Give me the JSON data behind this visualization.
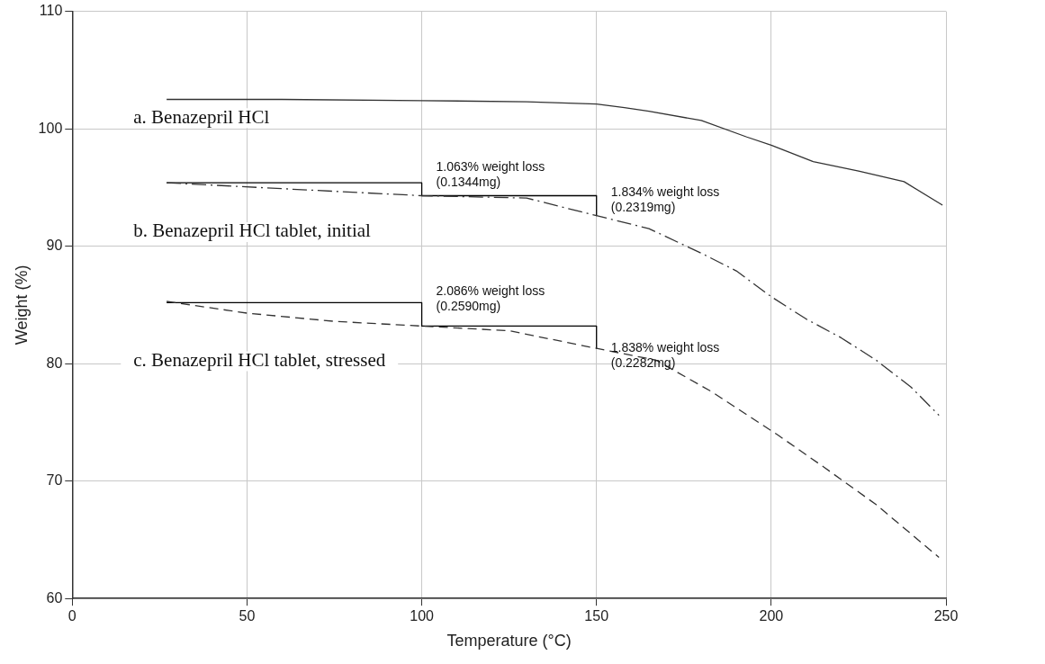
{
  "chart_data": {
    "type": "line",
    "xlabel": "Temperature (°C)",
    "ylabel": "Weight (%)",
    "xlim": [
      0,
      250
    ],
    "xticks": [
      0,
      50,
      100,
      150,
      200,
      250
    ],
    "ylim": [
      60,
      110
    ],
    "yticks": [
      60,
      70,
      80,
      90,
      100,
      110
    ],
    "grid": true,
    "legend": false,
    "marker": "none",
    "series": [
      {
        "name": "a. Benazepril HCl",
        "color": "#333333",
        "line_style": "solid",
        "x": [
          27,
          60,
          100,
          130,
          150,
          158,
          165,
          180,
          193,
          200,
          212,
          225,
          238,
          249
        ],
        "values": [
          102.5,
          102.5,
          102.4,
          102.3,
          102.1,
          101.8,
          101.5,
          100.7,
          99.3,
          98.6,
          97.2,
          96.4,
          95.5,
          93.5
        ]
      },
      {
        "name": "b. Benazepril HCl tablet, initial",
        "color": "#333333",
        "line_style": "dashdot",
        "x": [
          27,
          60,
          100,
          130,
          150,
          165,
          180,
          190,
          200,
          210,
          220,
          230,
          240,
          248
        ],
        "values": [
          95.4,
          94.9,
          94.3,
          94.1,
          92.6,
          91.5,
          89.4,
          87.9,
          85.7,
          83.8,
          82.2,
          80.3,
          78.0,
          75.6
        ]
      },
      {
        "name": "c. Benazepril HCl tablet, stressed",
        "color": "#333333",
        "line_style": "dashed",
        "x": [
          27,
          50,
          75,
          100,
          125,
          150,
          167,
          183,
          202,
          215,
          230,
          248
        ],
        "values": [
          85.3,
          84.3,
          83.6,
          83.2,
          82.8,
          81.3,
          80.3,
          77.6,
          73.9,
          71.2,
          68.0,
          63.5
        ]
      },
      {
        "color": "#000000",
        "line_style": "solid",
        "x": [
          27,
          100,
          100,
          150,
          150
        ],
        "values": [
          95.4,
          95.4,
          94.3,
          94.3,
          92.6
        ]
      },
      {
        "color": "#000000",
        "line_style": "solid",
        "x": [
          27,
          100,
          100,
          150,
          150
        ],
        "values": [
          85.2,
          85.2,
          83.2,
          83.2,
          81.3
        ]
      }
    ],
    "annotations": [
      "1.063% weight loss\n(0.1344mg)",
      "1.834% weight loss\n(0.2319mg)",
      "2.086% weight loss\n(0.2590mg)",
      "1.838% weight loss\n(0.2282mg)"
    ]
  }
}
